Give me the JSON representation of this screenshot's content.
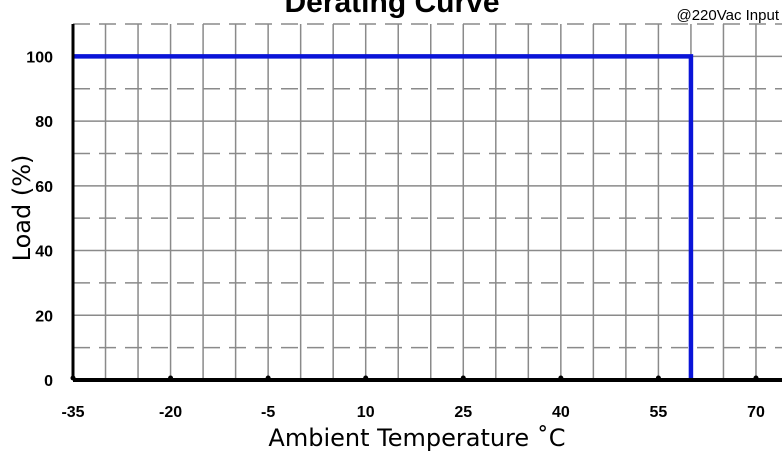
{
  "chart_data": {
    "type": "line",
    "title": "Derating Curve",
    "subtitle": "@220Vac Input",
    "xlabel": "Ambient Temperature ˚C",
    "ylabel": "Load (%)",
    "x_ticks": [
      "-35",
      "-20",
      "-5",
      "10",
      "25",
      "40",
      "55",
      "70"
    ],
    "y_ticks": [
      "0",
      "20",
      "40",
      "60",
      "80",
      "100"
    ],
    "xlim": [
      -35,
      74
    ],
    "ylim": [
      0,
      110
    ],
    "grid": true,
    "series": [
      {
        "color": "#0a14d8",
        "x": [
          -35,
          60,
          60
        ],
        "y": [
          100,
          100,
          0
        ]
      }
    ]
  }
}
